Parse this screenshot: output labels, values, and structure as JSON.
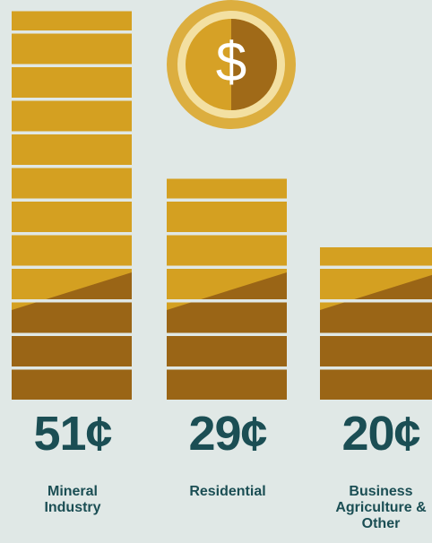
{
  "chart_data": {
    "type": "coin-stack",
    "categories": [
      "Mineral Industry",
      "Residential",
      "Business Agriculture & Other"
    ],
    "values": [
      51,
      29,
      20
    ],
    "value_labels": [
      "51¢",
      "29¢",
      "20¢"
    ],
    "color": "#d4a021"
  }
}
